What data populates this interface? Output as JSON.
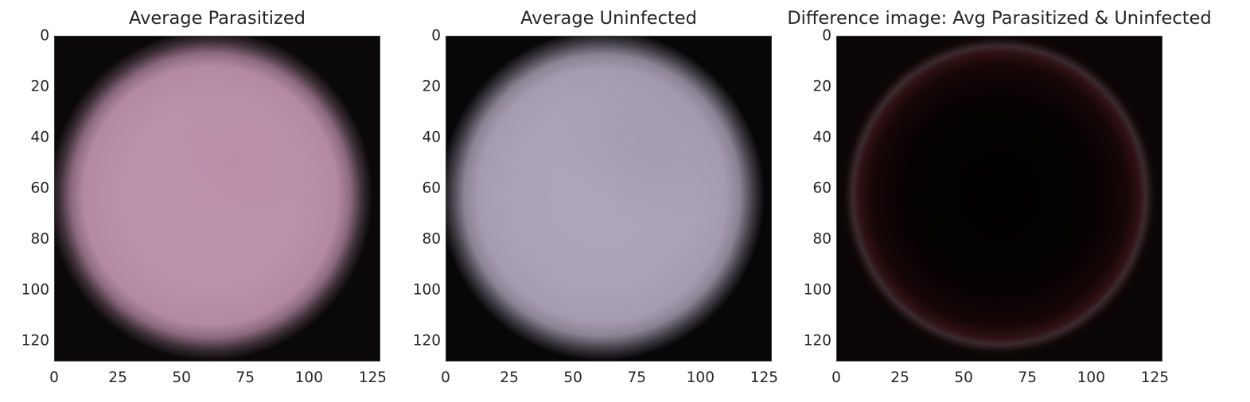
{
  "chart_data": [
    {
      "type": "heatmap",
      "title": "Average Parasitized",
      "xlabel": "",
      "ylabel": "",
      "xlim": [
        0,
        128
      ],
      "ylim": [
        128,
        0
      ],
      "x_ticks": [
        "0",
        "25",
        "50",
        "75",
        "100",
        "125"
      ],
      "y_ticks": [
        "0",
        "20",
        "40",
        "60",
        "80",
        "100",
        "120"
      ],
      "image": "average-parasitized-cell-pink"
    },
    {
      "type": "heatmap",
      "title": "Average Uninfected",
      "xlabel": "",
      "ylabel": "",
      "xlim": [
        0,
        128
      ],
      "ylim": [
        128,
        0
      ],
      "x_ticks": [
        "0",
        "25",
        "50",
        "75",
        "100",
        "125"
      ],
      "y_ticks": [
        "0",
        "20",
        "40",
        "60",
        "80",
        "100",
        "120"
      ],
      "image": "average-uninfected-cell-lavender"
    },
    {
      "type": "heatmap",
      "title": "Difference image: Avg Parasitized & Uninfected",
      "xlabel": "",
      "ylabel": "",
      "xlim": [
        0,
        128
      ],
      "ylim": [
        128,
        0
      ],
      "x_ticks": [
        "0",
        "25",
        "50",
        "75",
        "100",
        "125"
      ],
      "y_ticks": [
        "0",
        "20",
        "40",
        "60",
        "80",
        "100",
        "120"
      ],
      "image": "difference-image-dark"
    }
  ],
  "colors": {
    "parasitized_center": "#bc92aa",
    "uninfected_center": "#aca3b7",
    "background": "#050405"
  }
}
